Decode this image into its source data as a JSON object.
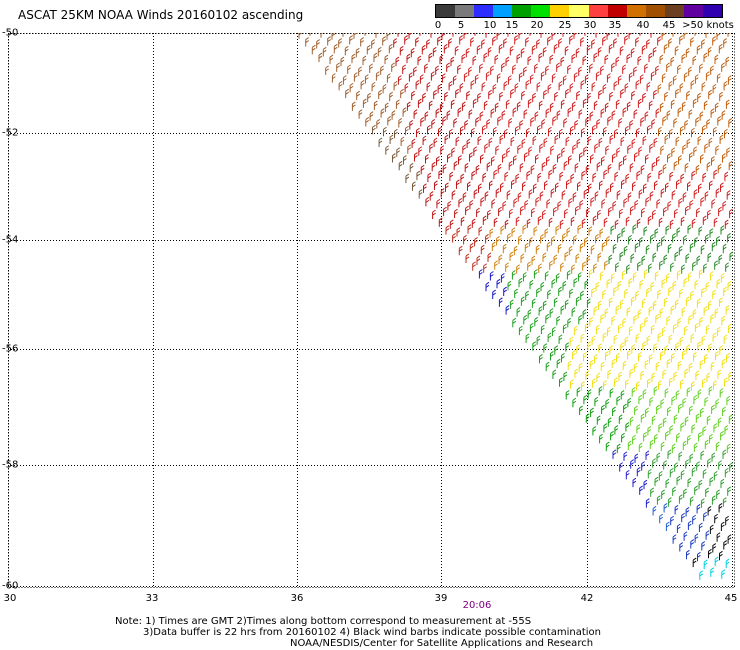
{
  "title": "ASCAT 25KM NOAA Winds 20160102 ascending",
  "legend": {
    "colors": [
      "#3a3a3a",
      "#7a7a7a",
      "#2d2dff",
      "#00a0ff",
      "#00a000",
      "#00e000",
      "#ffd000",
      "#ffff66",
      "#ff4040",
      "#c00000",
      "#d07000",
      "#a05000",
      "#6a4020",
      "#6000a0",
      "#3000b0"
    ],
    "labels": [
      "0",
      "5",
      "10",
      "15",
      "20",
      "25",
      "30",
      "35",
      "40",
      "45",
      ">50 knots"
    ]
  },
  "axes": {
    "lat_labels": [
      "-50",
      "-52",
      "-54",
      "-56",
      "-58",
      "-60"
    ],
    "lon_labels": [
      "30",
      "33",
      "36",
      "39",
      "42",
      "45"
    ]
  },
  "time_label": "20:06",
  "notes": [
    "Note: 1) Times are GMT 2)Times along bottom correspond to measurement at -55S",
    "3)Data buffer is 22 hrs from 20160102 4) Black wind barbs indicate possible contamination",
    "NOAA/NESDIS/Center for Satellite Applications and Research"
  ]
}
